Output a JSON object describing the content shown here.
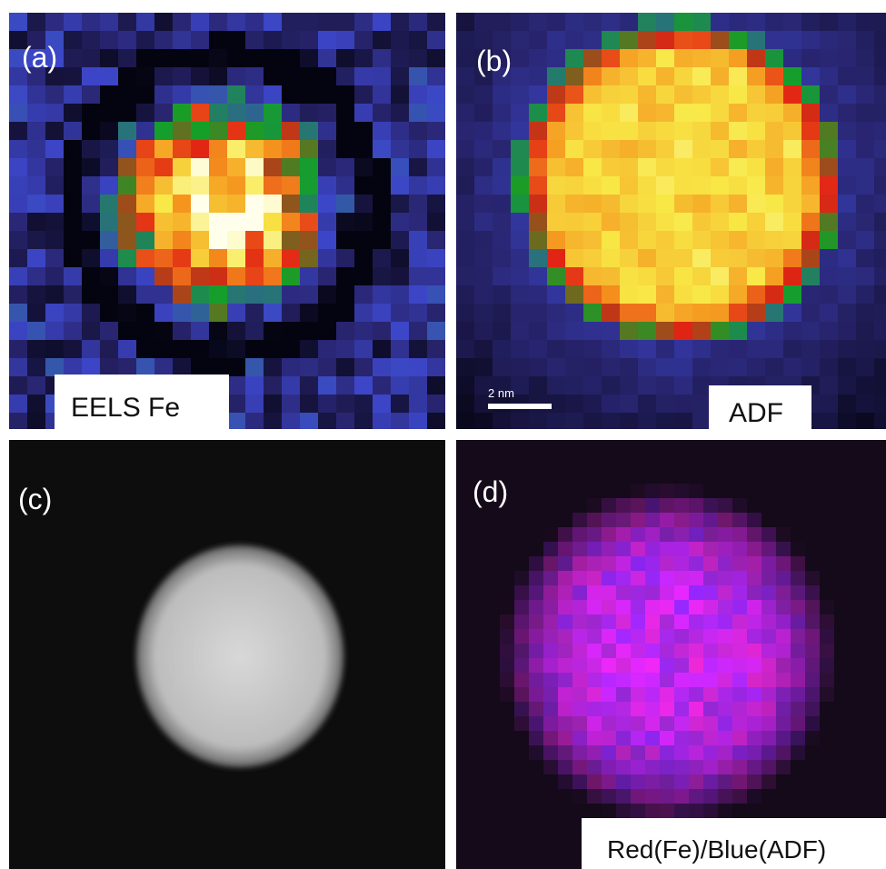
{
  "panels": [
    {
      "label": "(a)",
      "caption": "EELS Fe"
    },
    {
      "label": "(b)",
      "caption": "ADF",
      "scale_bar": "2 nm"
    },
    {
      "label": "(c)"
    },
    {
      "label": "(d)",
      "caption": "Red(Fe)/Blue(ADF)"
    }
  ]
}
